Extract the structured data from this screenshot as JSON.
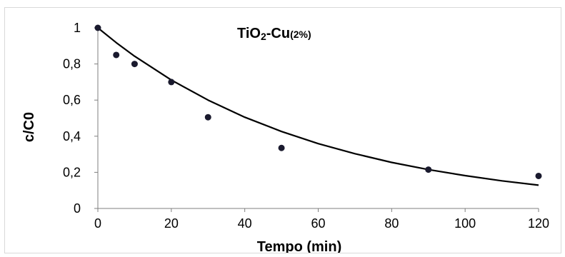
{
  "chart_data": {
    "type": "scatter",
    "title_main": "TiO",
    "title_sub2": "2",
    "title_mid": "-Cu",
    "title_pct": "(2%)",
    "xlabel": "Tempo (min)",
    "ylabel": "c/C0",
    "xlim": [
      0,
      120
    ],
    "ylim": [
      0,
      1
    ],
    "x_ticks": [
      0,
      20,
      40,
      60,
      80,
      100,
      120
    ],
    "x_tick_labels": [
      "0",
      "20",
      "40",
      "60",
      "80",
      "100",
      "120"
    ],
    "y_ticks": [
      0,
      0.2,
      0.4,
      0.6,
      0.8,
      1
    ],
    "y_tick_labels": [
      "0",
      "0,2",
      "0,4",
      "0,6",
      "0,8",
      "1"
    ],
    "grid": false,
    "series": [
      {
        "marker": "circle",
        "color": "#1a1a2e",
        "x": [
          0,
          5,
          10,
          20,
          30,
          50,
          90,
          120
        ],
        "y": [
          1.0,
          0.85,
          0.8,
          0.7,
          0.505,
          0.335,
          0.215,
          0.18
        ]
      }
    ],
    "fit_curve": {
      "color": "#000000",
      "model": "exponential decay",
      "x": [
        0,
        5,
        10,
        20,
        30,
        40,
        50,
        60,
        70,
        80,
        90,
        100,
        110,
        120
      ],
      "y": [
        1.0,
        0.918,
        0.843,
        0.711,
        0.6,
        0.505,
        0.426,
        0.359,
        0.303,
        0.255,
        0.215,
        0.182,
        0.153,
        0.129
      ]
    }
  }
}
